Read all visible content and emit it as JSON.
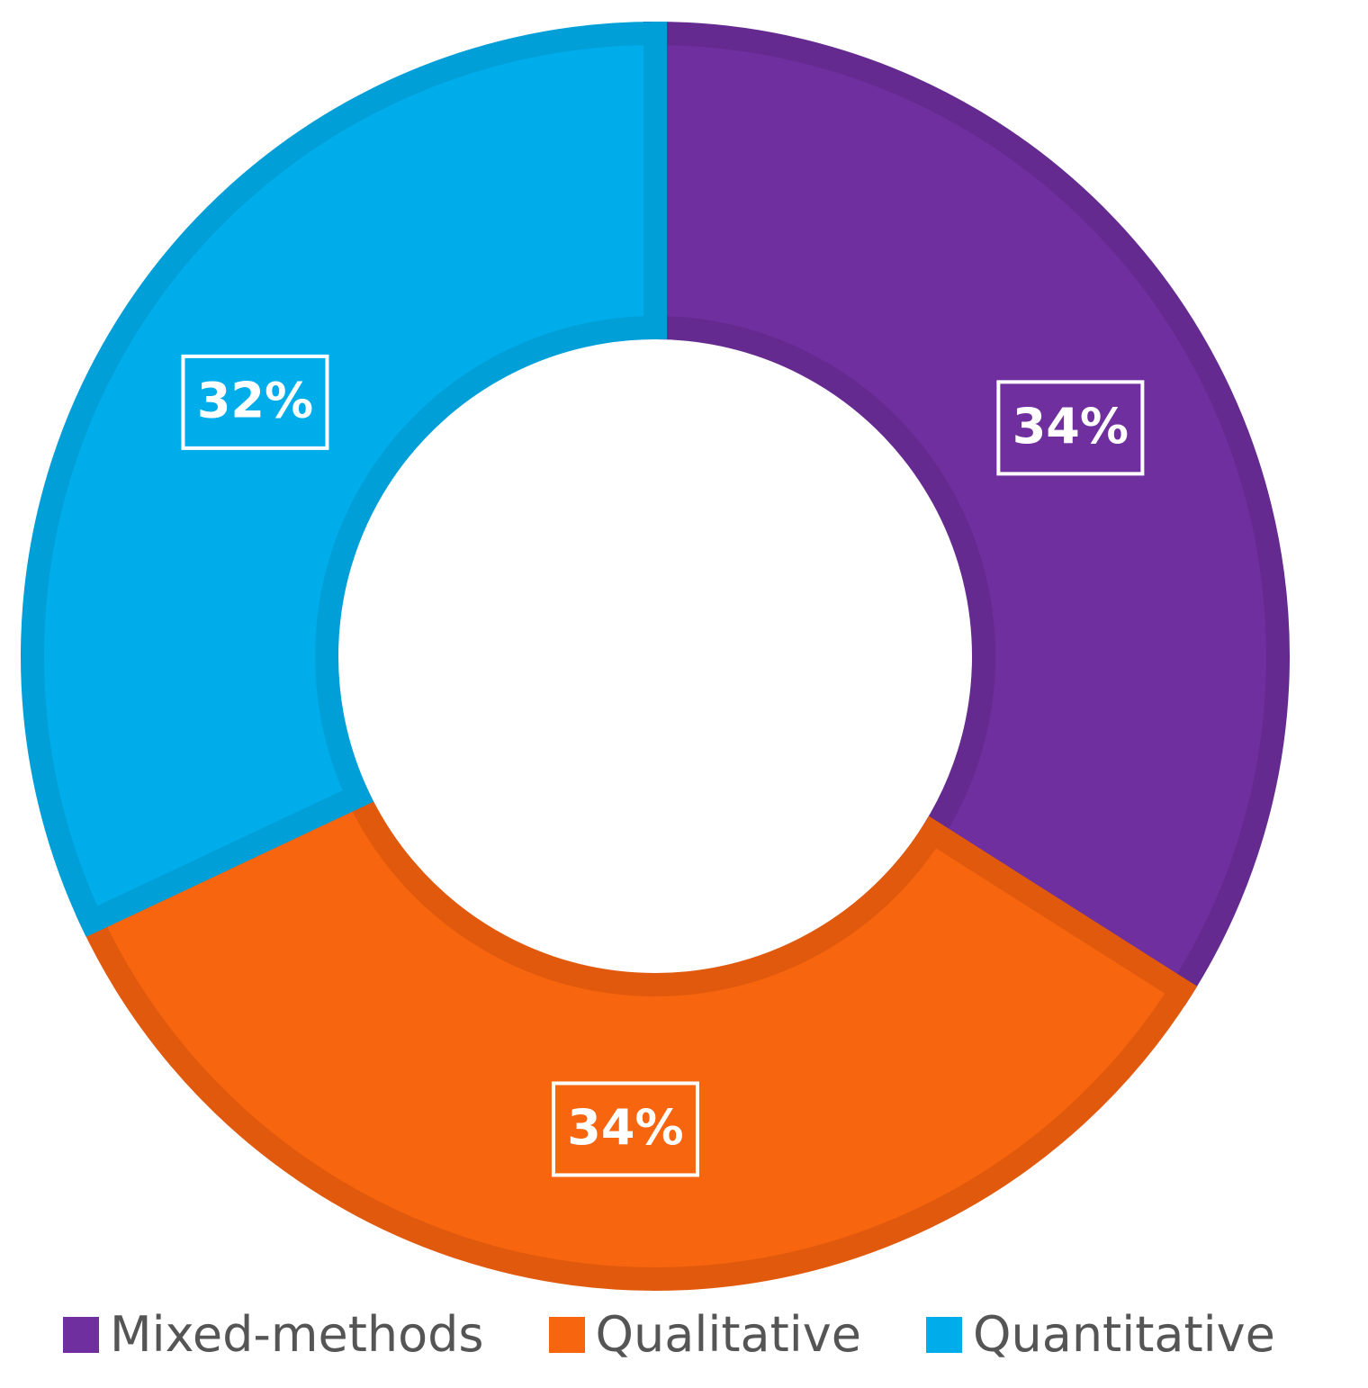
{
  "chart_data": {
    "type": "pie",
    "variant": "donut",
    "title": "",
    "categories": [
      "Mixed-methods",
      "Qualitative",
      "Quantitative"
    ],
    "values": [
      34,
      34,
      32
    ],
    "labels": [
      "34%",
      "34%",
      "32%"
    ],
    "colors": [
      "#6f2f9e",
      "#f7650f",
      "#00adeb"
    ],
    "edge_colors": [
      "#642a8f",
      "#e0590c",
      "#009fd8"
    ],
    "legend_position": "bottom",
    "start_angle": "12 o'clock",
    "direction": "clockwise"
  },
  "legend": {
    "items": [
      {
        "label": "Mixed-methods",
        "color": "#6f2f9e"
      },
      {
        "label": "Qualitative",
        "color": "#f7650f"
      },
      {
        "label": "Quantitative",
        "color": "#00adeb"
      }
    ]
  }
}
